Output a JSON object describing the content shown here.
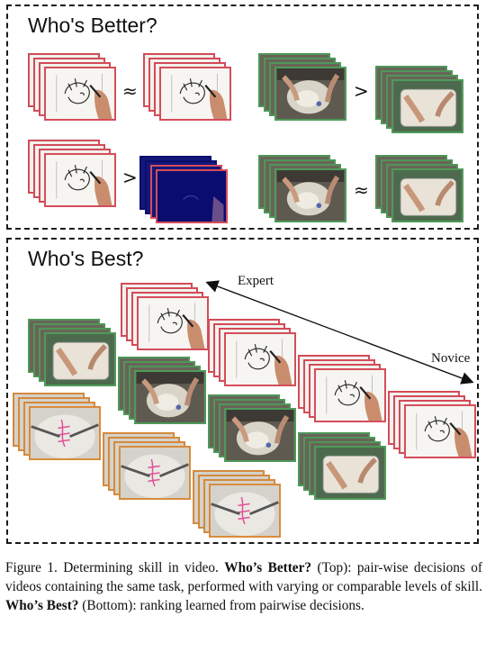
{
  "top_panel": {
    "title": "Who's Better?"
  },
  "bottom_panel": {
    "title": "Who's Best?",
    "expert_label": "Expert",
    "novice_label": "Novice"
  },
  "comparisons": {
    "row1_left": "≈",
    "row1_right": ">",
    "row2_left": ">",
    "row2_right": "≈"
  },
  "caption": {
    "figure_label": "Figure 1. Determining skill in video.",
    "better_bold": "Who’s Better?",
    "better_text": "(Top): pair-wise decisions of videos containing the same task, performed with varying or comparable levels of skill.",
    "best_bold": "Who’s Best?",
    "best_text": "(Bottom): ranking learned from pairwise decisions."
  },
  "colors": {
    "drawing_border": "#d64d5a",
    "surgery_border": "#4f9a59",
    "knot_border": "#d98c3c",
    "dark_frame": "#0b0d6e"
  }
}
